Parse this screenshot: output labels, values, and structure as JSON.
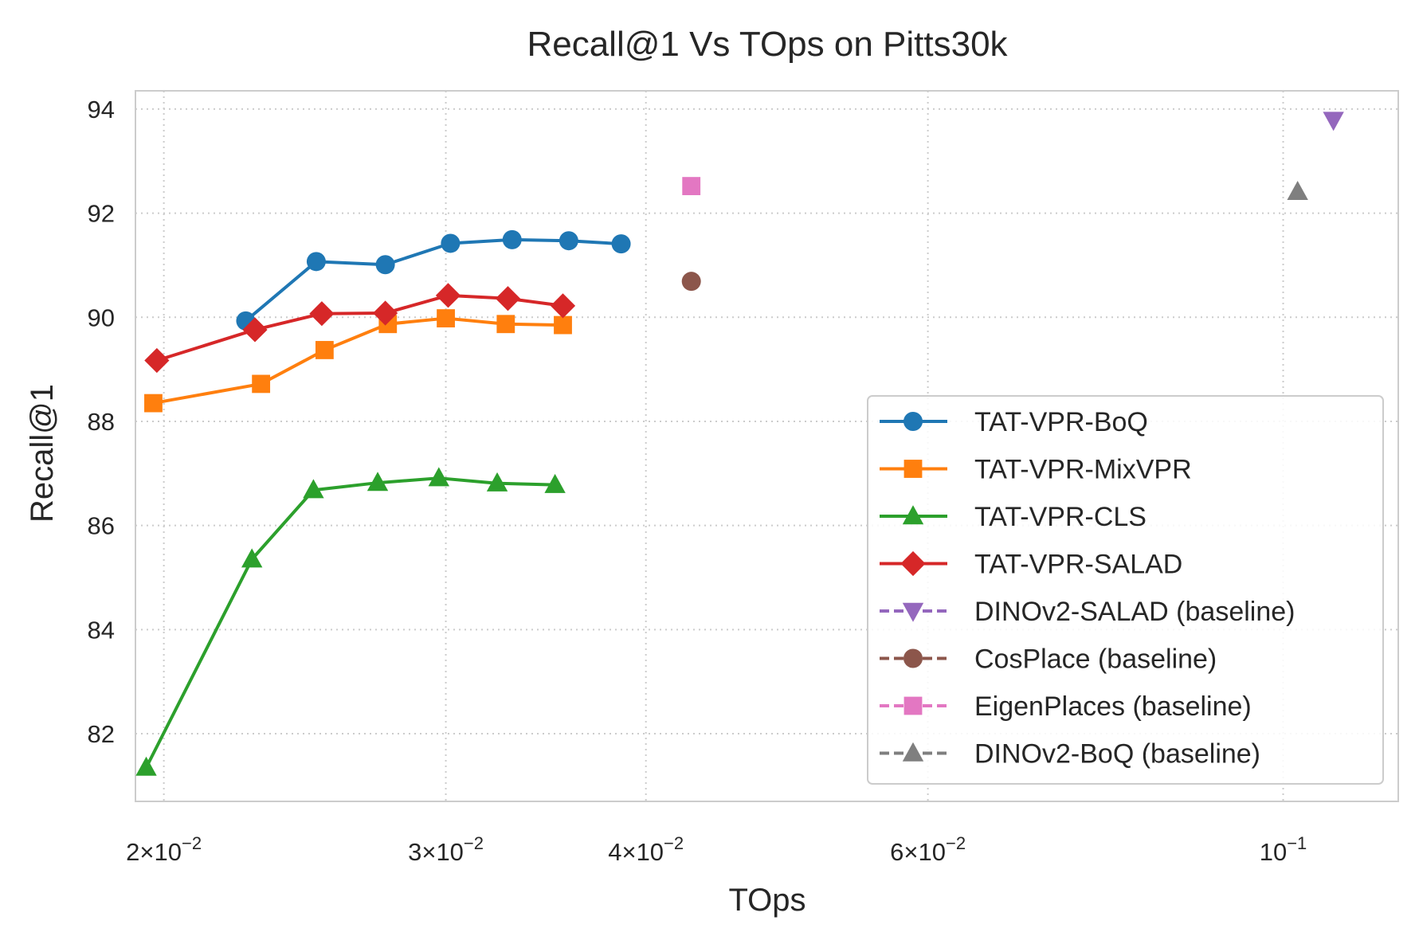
{
  "chart_data": {
    "type": "line",
    "title": "Recall@1 Vs TOps on Pitts30k",
    "xlabel": "TOps",
    "ylabel": "Recall@1",
    "x_scale": "log",
    "xlim": [
      0.0192,
      0.118
    ],
    "ylim": [
      80.7,
      94.35
    ],
    "x_ticks": [
      {
        "value": 0.02,
        "base": "2×10",
        "exp": "−2"
      },
      {
        "value": 0.03,
        "base": "3×10",
        "exp": "−2"
      },
      {
        "value": 0.04,
        "base": "4×10",
        "exp": "−2"
      },
      {
        "value": 0.06,
        "base": "6×10",
        "exp": "−2"
      },
      {
        "value": 0.1,
        "base": "10",
        "exp": "−1"
      }
    ],
    "y_ticks": [
      82,
      84,
      86,
      88,
      90,
      92,
      94
    ],
    "grid": true,
    "legend_position": "lower right",
    "series": [
      {
        "name": "TAT-VPR-BoQ",
        "color": "#1f77b4",
        "marker": "circle",
        "linestyle": "solid",
        "x": [
          0.0225,
          0.0249,
          0.0275,
          0.0302,
          0.033,
          0.0358,
          0.0386
        ],
        "y": [
          89.93,
          91.07,
          91.01,
          91.42,
          91.49,
          91.47,
          91.41
        ]
      },
      {
        "name": "TAT-VPR-MixVPR",
        "color": "#ff7f0e",
        "marker": "square",
        "linestyle": "solid",
        "x": [
          0.0197,
          0.023,
          0.0252,
          0.0276,
          0.03,
          0.0327,
          0.0355
        ],
        "y": [
          88.35,
          88.72,
          89.37,
          89.87,
          89.98,
          89.87,
          89.85
        ]
      },
      {
        "name": "TAT-VPR-CLS",
        "color": "#2ca02c",
        "marker": "triangle-up",
        "linestyle": "solid",
        "x": [
          0.0195,
          0.0227,
          0.0248,
          0.0272,
          0.0297,
          0.0323,
          0.0351
        ],
        "y": [
          81.35,
          85.35,
          86.68,
          86.82,
          86.91,
          86.81,
          86.78
        ]
      },
      {
        "name": "TAT-VPR-SALAD",
        "color": "#d62728",
        "marker": "diamond",
        "linestyle": "solid",
        "x": [
          0.0198,
          0.0228,
          0.0251,
          0.0275,
          0.0301,
          0.0328,
          0.0355
        ],
        "y": [
          89.17,
          89.76,
          90.07,
          90.08,
          90.42,
          90.36,
          90.22
        ]
      },
      {
        "name": "DINOv2-SALAD (baseline)",
        "color": "#9467bd",
        "marker": "triangle-down",
        "linestyle": "dashed",
        "x": [
          0.1075
        ],
        "y": [
          93.79
        ]
      },
      {
        "name": "CosPlace (baseline)",
        "color": "#8c564b",
        "marker": "circle",
        "linestyle": "dashed",
        "x": [
          0.0427
        ],
        "y": [
          90.69
        ]
      },
      {
        "name": "EigenPlaces (baseline)",
        "color": "#e377c2",
        "marker": "square",
        "linestyle": "dashed",
        "x": [
          0.0427
        ],
        "y": [
          92.52
        ]
      },
      {
        "name": "DINOv2-BoQ (baseline)",
        "color": "#7f7f7f",
        "marker": "triangle-up",
        "linestyle": "dashed",
        "x": [
          0.1021
        ],
        "y": [
          92.41
        ]
      }
    ]
  }
}
